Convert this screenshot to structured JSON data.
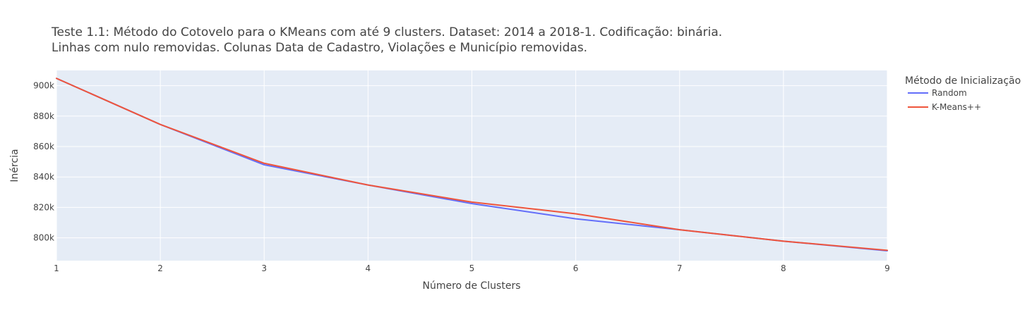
{
  "chart_data": {
    "type": "line",
    "title_lines": [
      "Teste 1.1: Método do Cotovelo para o KMeans com até 9 clusters. Dataset: 2014 a 2018-1. Codificação: binária.",
      "Linhas com nulo removidas. Colunas Data de Cadastro, Violações e Município removidas."
    ],
    "xlabel": "Número de Clusters",
    "ylabel": "Inércia",
    "x": [
      1,
      2,
      3,
      4,
      5,
      6,
      7,
      8,
      9
    ],
    "xlim": [
      1,
      9
    ],
    "ylim": [
      785000,
      910000
    ],
    "x_ticks": [
      1,
      2,
      3,
      4,
      5,
      6,
      7,
      8,
      9
    ],
    "y_ticks": [
      800000,
      820000,
      840000,
      860000,
      880000,
      900000
    ],
    "y_tick_labels": [
      "800k",
      "820k",
      "840k",
      "860k",
      "880k",
      "900k"
    ],
    "legend_title": "Método de Inicialização",
    "legend_position": "right",
    "grid": true,
    "plot_background": "#e5ecf6",
    "series": [
      {
        "name": "Random",
        "color": "#636efa",
        "values": [
          904800,
          874500,
          848000,
          834700,
          822500,
          812500,
          805300,
          797800,
          791500
        ]
      },
      {
        "name": "K-Means++",
        "color": "#ef553b",
        "values": [
          904800,
          874500,
          849000,
          834700,
          823500,
          815800,
          805300,
          797800,
          791800
        ]
      }
    ]
  }
}
